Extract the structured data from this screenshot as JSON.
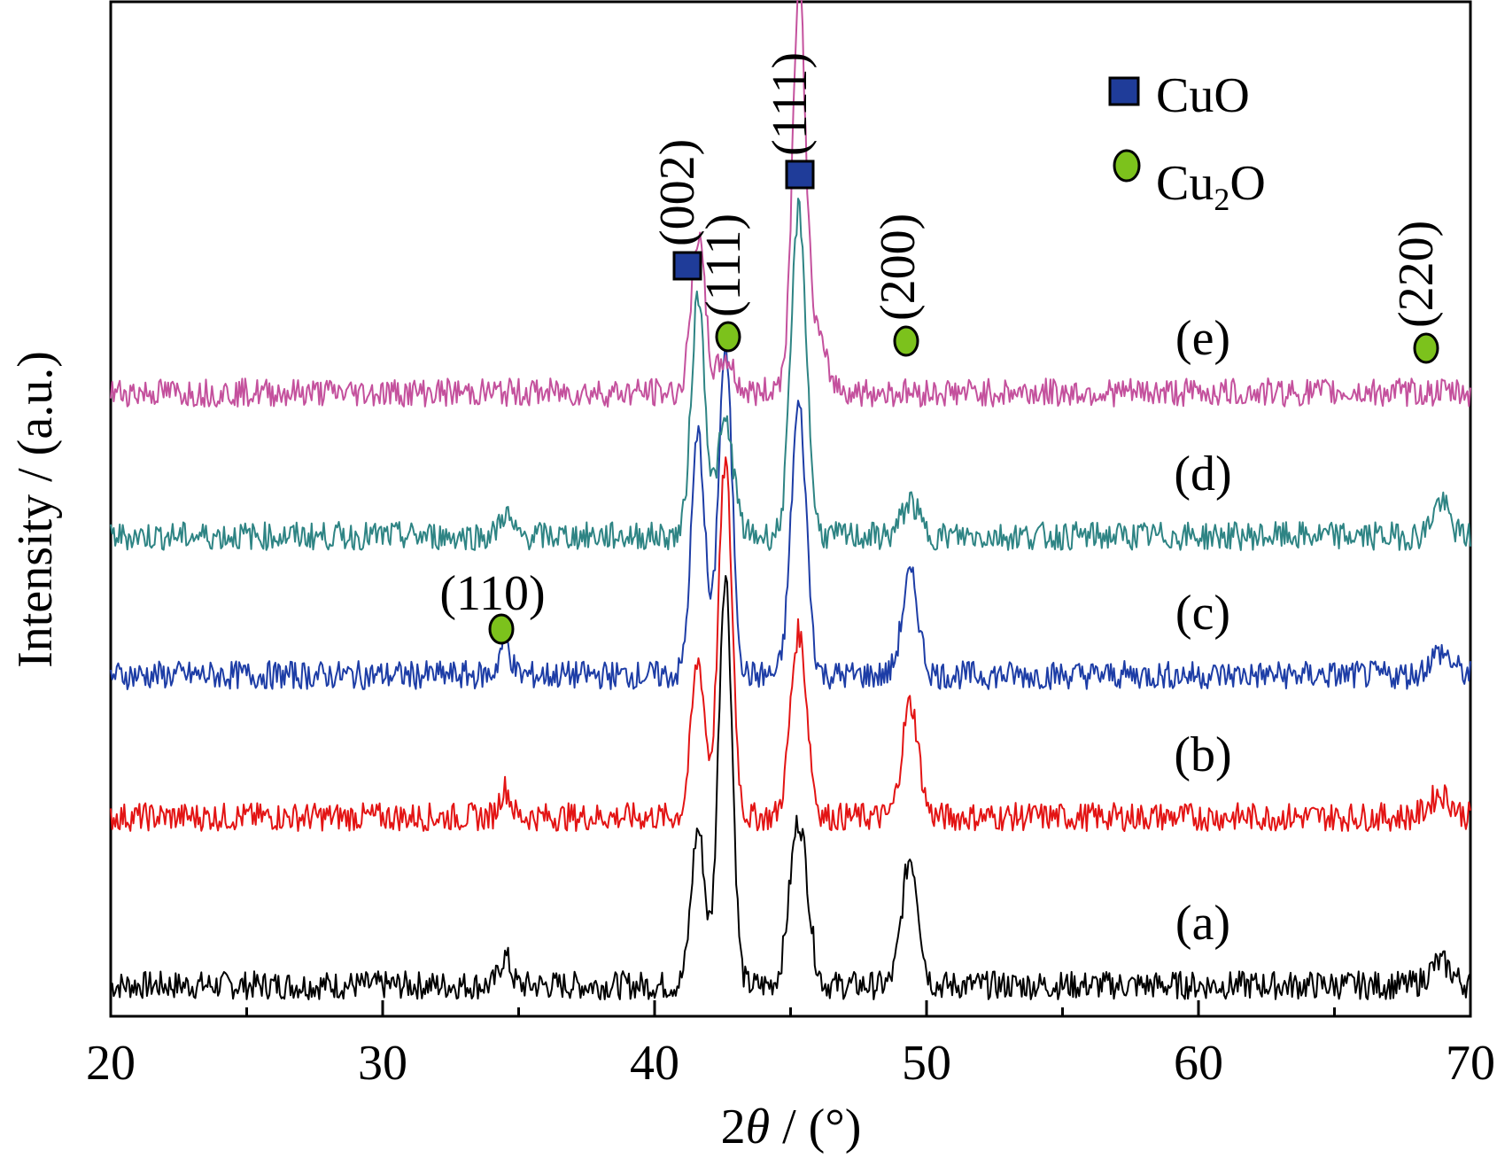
{
  "colors": {
    "axis": "#000000",
    "cuo_marker": "#1f3c99",
    "cu2o_marker": "#7cc21c",
    "a": "#000000",
    "b": "#e31414",
    "c": "#1d3da6",
    "d": "#2e8484",
    "e": "#c4519d"
  },
  "chart_data": {
    "type": "line",
    "title": "",
    "xlabel_prefix": "2",
    "xlabel_symbol": "θ",
    "xlabel_suffix": " / (°)",
    "ylabel": "Intensity / (a.u.)",
    "xlim": [
      20,
      70
    ],
    "xticks": [
      20,
      30,
      40,
      50,
      60,
      70
    ],
    "xtick_labels": [
      "20",
      "30",
      "40",
      "50",
      "60",
      "70"
    ],
    "minor_xticks": [
      25,
      35,
      45,
      55,
      65
    ],
    "y_ticks_shown": false,
    "grid": false,
    "legend": {
      "position": "top-right",
      "entries": [
        {
          "marker": "square",
          "label": "CuO"
        },
        {
          "marker": "circle",
          "label_main": "Cu",
          "label_sub": "2",
          "label_end": "O"
        }
      ]
    },
    "series": [
      {
        "id": "a",
        "label": "(a)",
        "baseline": 0,
        "peaks": [
          [
            34.5,
            10,
            0.2
          ],
          [
            41.6,
            55,
            0.25
          ],
          [
            42.6,
            145,
            0.25
          ],
          [
            45.3,
            58,
            0.33
          ],
          [
            49.4,
            45,
            0.3
          ],
          [
            68.9,
            8,
            0.4
          ]
        ]
      },
      {
        "id": "b",
        "label": "(b)",
        "baseline": 1,
        "peaks": [
          [
            34.5,
            10,
            0.2
          ],
          [
            41.6,
            55,
            0.25
          ],
          [
            42.6,
            125,
            0.25
          ],
          [
            45.3,
            65,
            0.3
          ],
          [
            49.4,
            40,
            0.3
          ],
          [
            68.9,
            8,
            0.4
          ]
        ]
      },
      {
        "id": "c",
        "label": "(c)",
        "baseline": 2,
        "peaks": [
          [
            34.5,
            12,
            0.2
          ],
          [
            41.6,
            85,
            0.25
          ],
          [
            42.6,
            115,
            0.25
          ],
          [
            45.3,
            95,
            0.28
          ],
          [
            49.4,
            35,
            0.3
          ],
          [
            68.9,
            8,
            0.4
          ]
        ]
      },
      {
        "id": "d",
        "label": "(d)",
        "baseline": 3,
        "peaks": [
          [
            34.5,
            8,
            0.2
          ],
          [
            41.6,
            85,
            0.25
          ],
          [
            42.6,
            40,
            0.3
          ],
          [
            45.3,
            115,
            0.28
          ],
          [
            49.4,
            12,
            0.3
          ],
          [
            68.9,
            12,
            0.3
          ]
        ]
      },
      {
        "id": "e",
        "label": "(e)",
        "baseline": 4,
        "peaks": [
          [
            41.6,
            55,
            0.25
          ],
          [
            42.6,
            12,
            0.3
          ],
          [
            45.3,
            120,
            0.22
          ],
          [
            45.6,
            30,
            0.5
          ]
        ]
      }
    ],
    "annotations": [
      {
        "label": "(110)",
        "x": 34.5,
        "marker": "circle",
        "phase": "Cu2O",
        "orientation": "horizontal"
      },
      {
        "label": "(002)",
        "x": 41.6,
        "marker": "square",
        "phase": "CuO",
        "orientation": "vertical"
      },
      {
        "label": "(111)",
        "x": 42.6,
        "marker": "circle",
        "phase": "Cu2O",
        "orientation": "vertical"
      },
      {
        "label": "(111)",
        "x": 45.3,
        "marker": "square",
        "phase": "CuO",
        "orientation": "vertical"
      },
      {
        "label": "(200)",
        "x": 49.4,
        "marker": "circle",
        "phase": "Cu2O",
        "orientation": "vertical"
      },
      {
        "label": "(220)",
        "x": 68.9,
        "marker": "circle",
        "phase": "Cu2O",
        "orientation": "vertical"
      }
    ]
  }
}
